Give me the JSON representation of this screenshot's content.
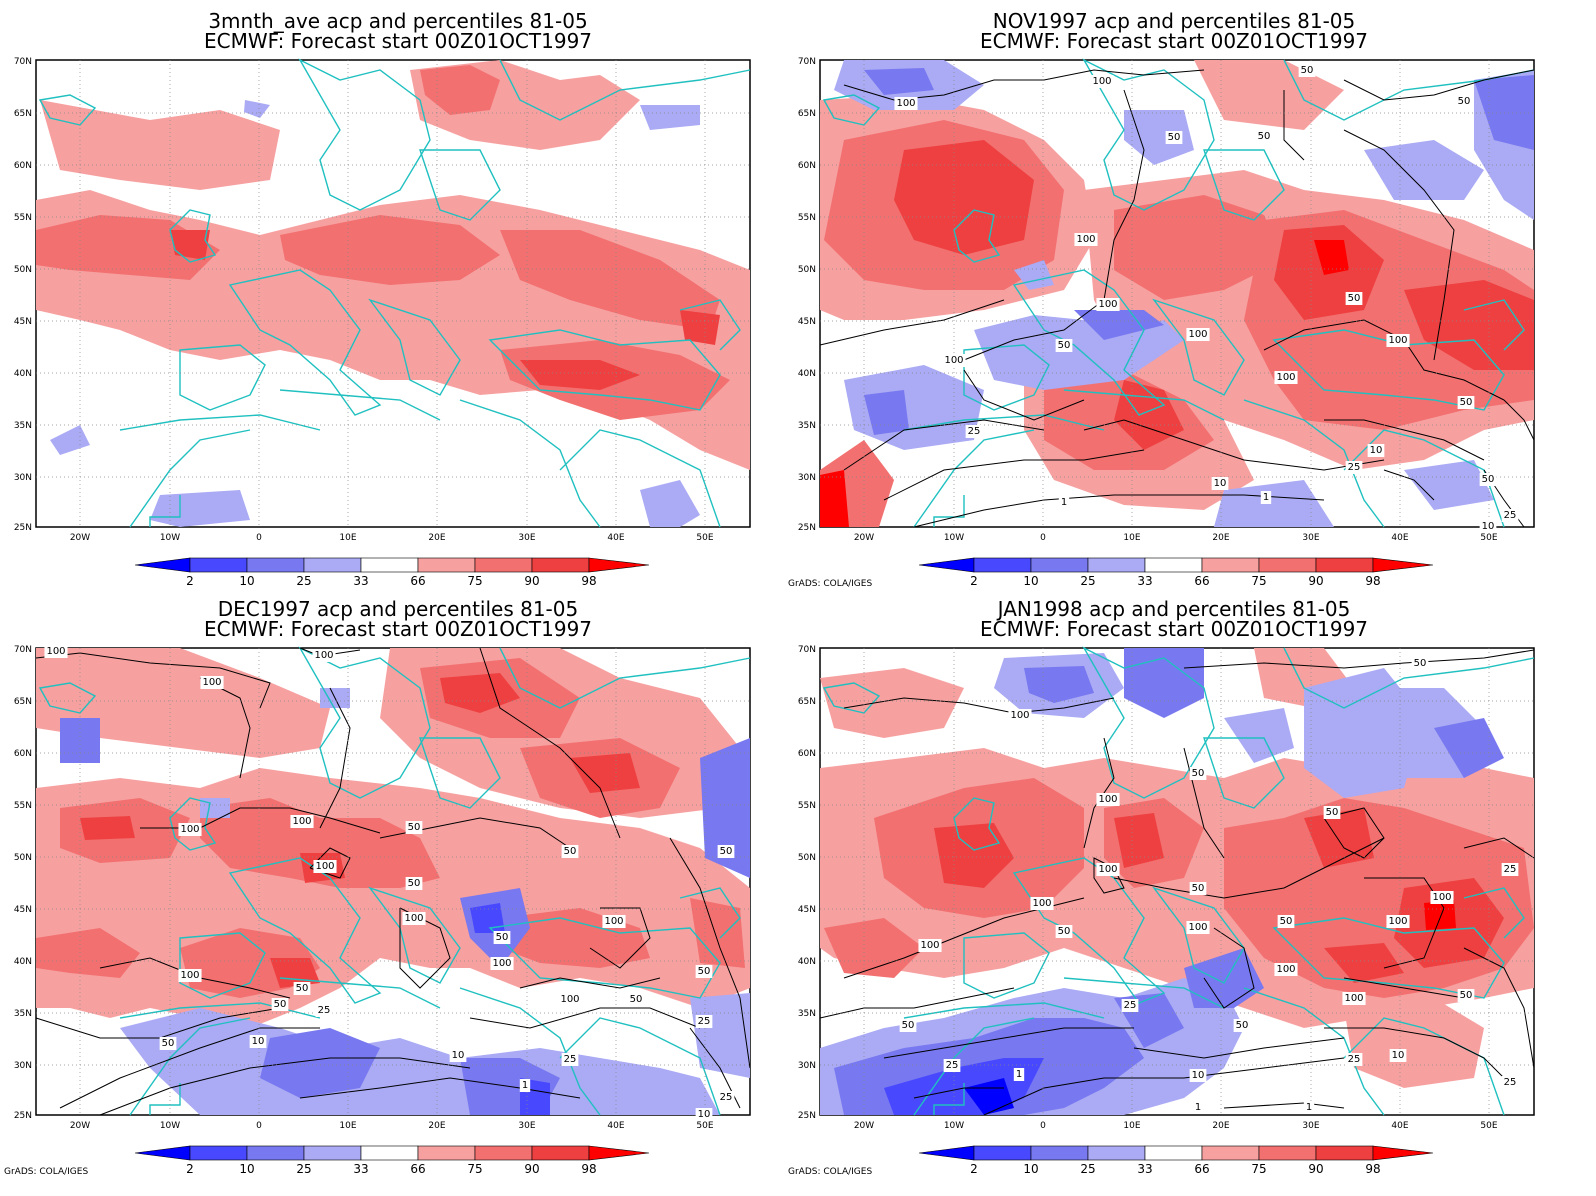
{
  "panels": [
    {
      "title1": "3mnth_ave acp and percentiles 81-05",
      "title2": "ECMWF: Forecast start 00Z01OCT1997",
      "credit": ""
    },
    {
      "title1": "NOV1997 acp and percentiles 81-05",
      "title2": "ECMWF: Forecast start 00Z01OCT1997",
      "credit": "GrADS: COLA/IGES"
    },
    {
      "title1": "DEC1997 acp and percentiles 81-05",
      "title2": "ECMWF: Forecast start 00Z01OCT1997",
      "credit": "GrADS: COLA/IGES"
    },
    {
      "title1": "JAN1998 acp and percentiles 81-05",
      "title2": "ECMWF: Forecast start 00Z01OCT1997",
      "credit": "GrADS: COLA/IGES"
    }
  ],
  "axes": {
    "lat_labels": [
      "70N",
      "65N",
      "60N",
      "55N",
      "50N",
      "45N",
      "40N",
      "35N",
      "30N",
      "25N"
    ],
    "lon_labels": [
      "20W",
      "10W",
      "0",
      "10E",
      "20E",
      "30E",
      "40E",
      "50E"
    ]
  },
  "colorbar": {
    "labels": [
      "2",
      "10",
      "25",
      "33",
      "66",
      "75",
      "90",
      "98"
    ],
    "colors": [
      "#0000ff",
      "#4848ff",
      "#7878f0",
      "#aaaaf5",
      "#ffffff",
      "#f7a0a0",
      "#f27070",
      "#ee4040",
      "#ff0000"
    ]
  },
  "colors": {
    "coast": "#20c0c0",
    "contour": "#000000",
    "grid": "#888888"
  },
  "contour_labels": {
    "nov": [
      "100",
      "100",
      "50",
      "50",
      "50",
      "50",
      "100",
      "100",
      "50",
      "100",
      "100",
      "100",
      "50",
      "25",
      "100",
      "50",
      "10",
      "25",
      "10",
      "1",
      "1",
      "50",
      "25",
      "10"
    ],
    "dec": [
      "100",
      "100",
      "100",
      "100",
      "100",
      "50",
      "50",
      "100",
      "50",
      "100",
      "100",
      "50",
      "50",
      "100",
      "100",
      "50",
      "25",
      "50",
      "100",
      "50",
      "10",
      "25",
      "1",
      "10",
      "25",
      "50",
      "25",
      "10",
      "50"
    ],
    "jan": [
      "100",
      "50",
      "100",
      "50",
      "50",
      "100",
      "100",
      "50",
      "100",
      "50",
      "100",
      "50",
      "100",
      "100",
      "100",
      "100",
      "25",
      "50",
      "50",
      "25",
      "25",
      "1",
      "10",
      "1",
      "50",
      "25",
      "10",
      "25",
      "1"
    ]
  }
}
